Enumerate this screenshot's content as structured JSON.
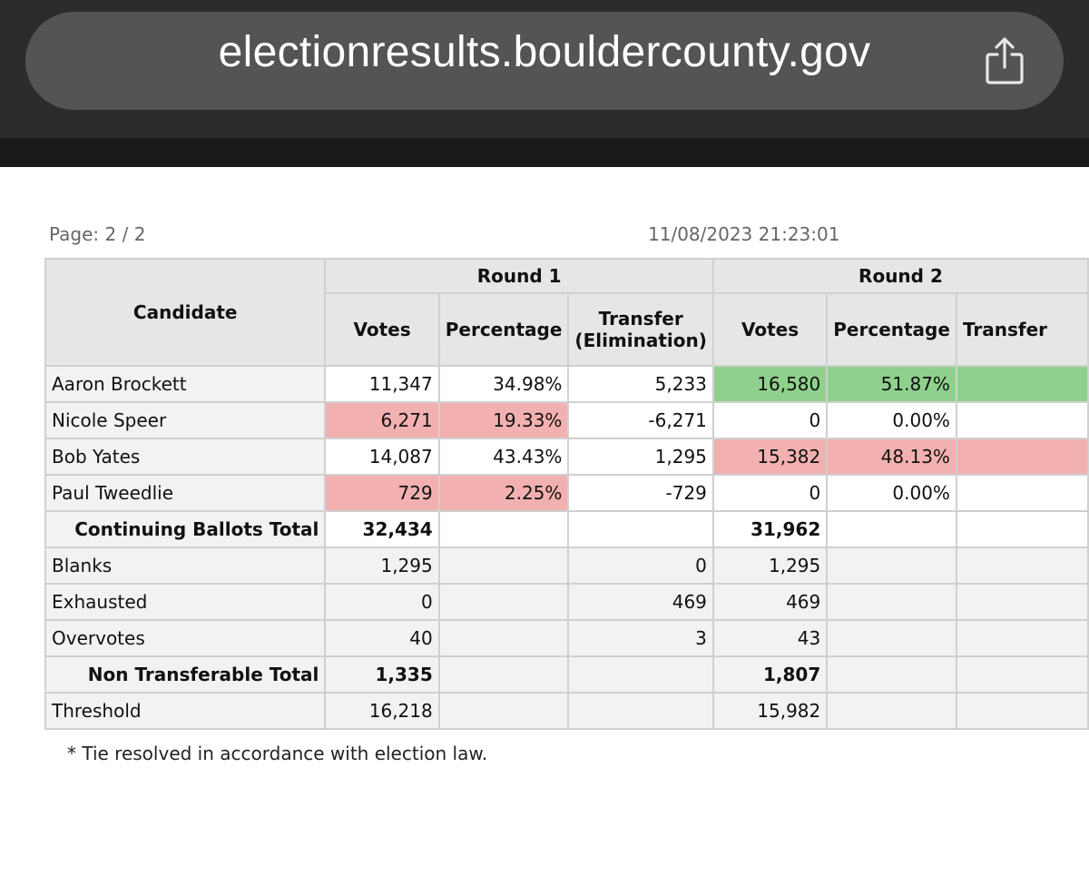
{
  "browser": {
    "url": "electionresults.bouldercounty.gov",
    "share_icon": "share-icon"
  },
  "report": {
    "page_label": "Page: 2 / 2",
    "timestamp": "11/08/2023 21:23:01",
    "footnote": "* Tie resolved in accordance with election law."
  },
  "table": {
    "candidate_header": "Candidate",
    "rounds": [
      {
        "label": "Round 1",
        "votes": "Votes",
        "percentage": "Percentage",
        "transfer": "Transfer",
        "transfer_sub": "(Elimination)"
      },
      {
        "label": "Round 2",
        "votes": "Votes",
        "percentage": "Percentage",
        "transfer": "Transfer"
      }
    ],
    "candidates": [
      {
        "name": "Aaron Brockett",
        "r1_votes": "11,347",
        "r1_pct": "34.98%",
        "r1_transfer": "5,233",
        "r2_votes": "16,580",
        "r2_pct": "51.87%"
      },
      {
        "name": "Nicole Speer",
        "r1_votes": "6,271",
        "r1_pct": "19.33%",
        "r1_transfer": "-6,271",
        "r2_votes": "0",
        "r2_pct": "0.00%"
      },
      {
        "name": "Bob Yates",
        "r1_votes": "14,087",
        "r1_pct": "43.43%",
        "r1_transfer": "1,295",
        "r2_votes": "15,382",
        "r2_pct": "48.13%"
      },
      {
        "name": "Paul Tweedlie",
        "r1_votes": "729",
        "r1_pct": "2.25%",
        "r1_transfer": "-729",
        "r2_votes": "0",
        "r2_pct": "0.00%"
      }
    ],
    "continuing_total": {
      "label": "Continuing Ballots Total",
      "r1_votes": "32,434",
      "r2_votes": "31,962"
    },
    "summary": [
      {
        "name": "Blanks",
        "r1_votes": "1,295",
        "r1_transfer": "0",
        "r2_votes": "1,295"
      },
      {
        "name": "Exhausted",
        "r1_votes": "0",
        "r1_transfer": "469",
        "r2_votes": "469"
      },
      {
        "name": "Overvotes",
        "r1_votes": "40",
        "r1_transfer": "3",
        "r2_votes": "43"
      }
    ],
    "non_transferable_total": {
      "label": "Non Transferable Total",
      "r1_votes": "1,335",
      "r2_votes": "1,807"
    },
    "threshold": {
      "name": "Threshold",
      "r1_votes": "16,218",
      "r2_votes": "15,982"
    }
  },
  "colors": {
    "eliminated": "#f2b1b0",
    "winner": "#8fd18c",
    "header_bg": "#e6e6e6"
  }
}
